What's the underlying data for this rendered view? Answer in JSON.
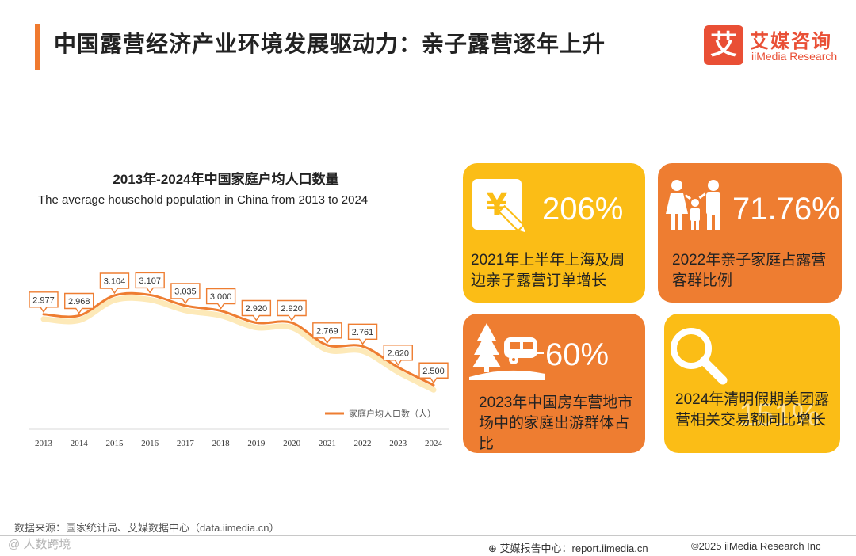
{
  "page": {
    "title": "中国露营经济产业环境发展驱动力：亲子露营逐年上升"
  },
  "logo": {
    "badge": "艾",
    "cn": "艾媒咨询",
    "en": "iiMedia Research"
  },
  "chart_data": {
    "type": "line",
    "title": "2013年-2024年中国家庭户均人口数量",
    "subtitle": "The average household population in China from 2013 to 2024",
    "x": [
      "2013",
      "2014",
      "2015",
      "2016",
      "2017",
      "2018",
      "2019",
      "2020",
      "2021",
      "2022",
      "2023",
      "2024"
    ],
    "series": [
      {
        "name": "家庭户均人口数（人）",
        "values": [
          2.977,
          2.968,
          3.104,
          3.107,
          3.035,
          3.0,
          2.92,
          2.92,
          2.769,
          2.761,
          2.62,
          2.5
        ],
        "labels": [
          "2.977",
          "2.968",
          "3.104",
          "3.107",
          "3.035",
          "3.000",
          "2.920",
          "2.920",
          "2.769",
          "2.761",
          "2.620",
          "2.500"
        ]
      }
    ],
    "ylim": [
      2.0,
      3.6
    ],
    "xlabel": "",
    "ylabel": "",
    "grid": false,
    "legend": "bottom-right",
    "color": "#ee7d31"
  },
  "cards": [
    {
      "pct": "206%",
      "text": "2021年上半年上海及周边亲子露营订单增长",
      "icon": "yen-pen-icon",
      "color": "#fbbd16"
    },
    {
      "pct": "71.76%",
      "text": "2022年亲子家庭占露营客群比例",
      "icon": "family-icon",
      "color": "#ee7d31"
    },
    {
      "pct": "60%",
      "text": "2023年中国房车营地市场中的家庭出游群体占比",
      "icon": "camper-tree-icon",
      "color": "#ee7d31"
    },
    {
      "pct": "151%",
      "text": "2024年清明假期美团露营相关交易额同比增长",
      "icon": "magnifier-icon",
      "color": "#fbbd16"
    }
  ],
  "footer": {
    "source": "数据来源：国家统计局、艾媒数据中心（data.iimedia.cn）",
    "watermark": "@ 人数跨境",
    "report": "艾媒报告中心：report.iimedia.cn",
    "copyright": "©2025  iiMedia Research  Inc"
  }
}
